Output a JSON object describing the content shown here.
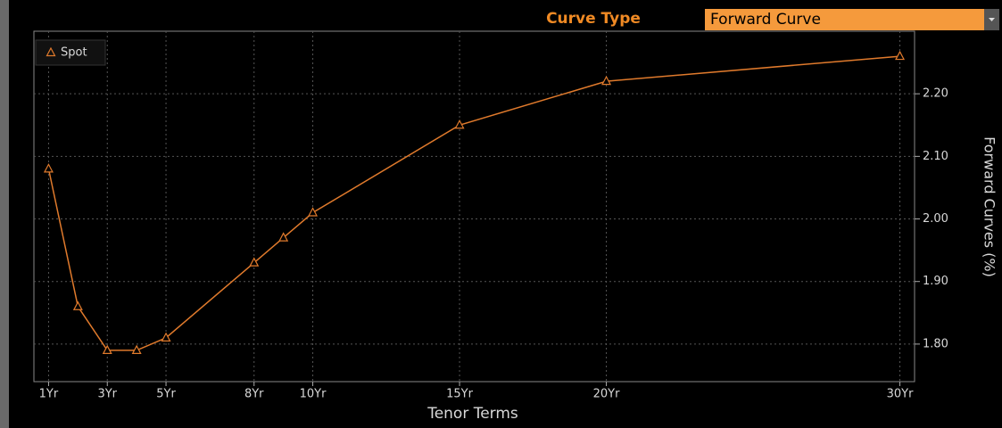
{
  "controls": {
    "label": "Curve Type",
    "value": "Forward Curve"
  },
  "chart_data": {
    "type": "line",
    "x": [
      1,
      2,
      3,
      4,
      5,
      8,
      9,
      10,
      15,
      20,
      30
    ],
    "series": [
      {
        "name": "Spot",
        "color": "#e07a2c",
        "values": [
          2.08,
          1.86,
          1.79,
          1.79,
          1.81,
          1.93,
          1.97,
          2.01,
          2.15,
          2.22,
          2.26
        ]
      }
    ],
    "xlabel": "Tenor Terms",
    "ylabel": "Forward Curves (%)",
    "xlim": [
      0.5,
      30.5
    ],
    "xticks": [
      {
        "value": 1,
        "label": "1Yr"
      },
      {
        "value": 3,
        "label": "3Yr"
      },
      {
        "value": 5,
        "label": "5Yr"
      },
      {
        "value": 8,
        "label": "8Yr"
      },
      {
        "value": 10,
        "label": "10Yr"
      },
      {
        "value": 15,
        "label": "15Yr"
      },
      {
        "value": 20,
        "label": "20Yr"
      },
      {
        "value": 30,
        "label": "30Yr"
      }
    ],
    "ylim": [
      1.74,
      2.3
    ],
    "yticks": [
      {
        "value": 1.8,
        "label": "1.80"
      },
      {
        "value": 1.9,
        "label": "1.90"
      },
      {
        "value": 2.0,
        "label": "2.00"
      },
      {
        "value": 2.1,
        "label": "2.10"
      },
      {
        "value": 2.2,
        "label": "2.20"
      }
    ],
    "grid": true,
    "legend": "upper left"
  }
}
